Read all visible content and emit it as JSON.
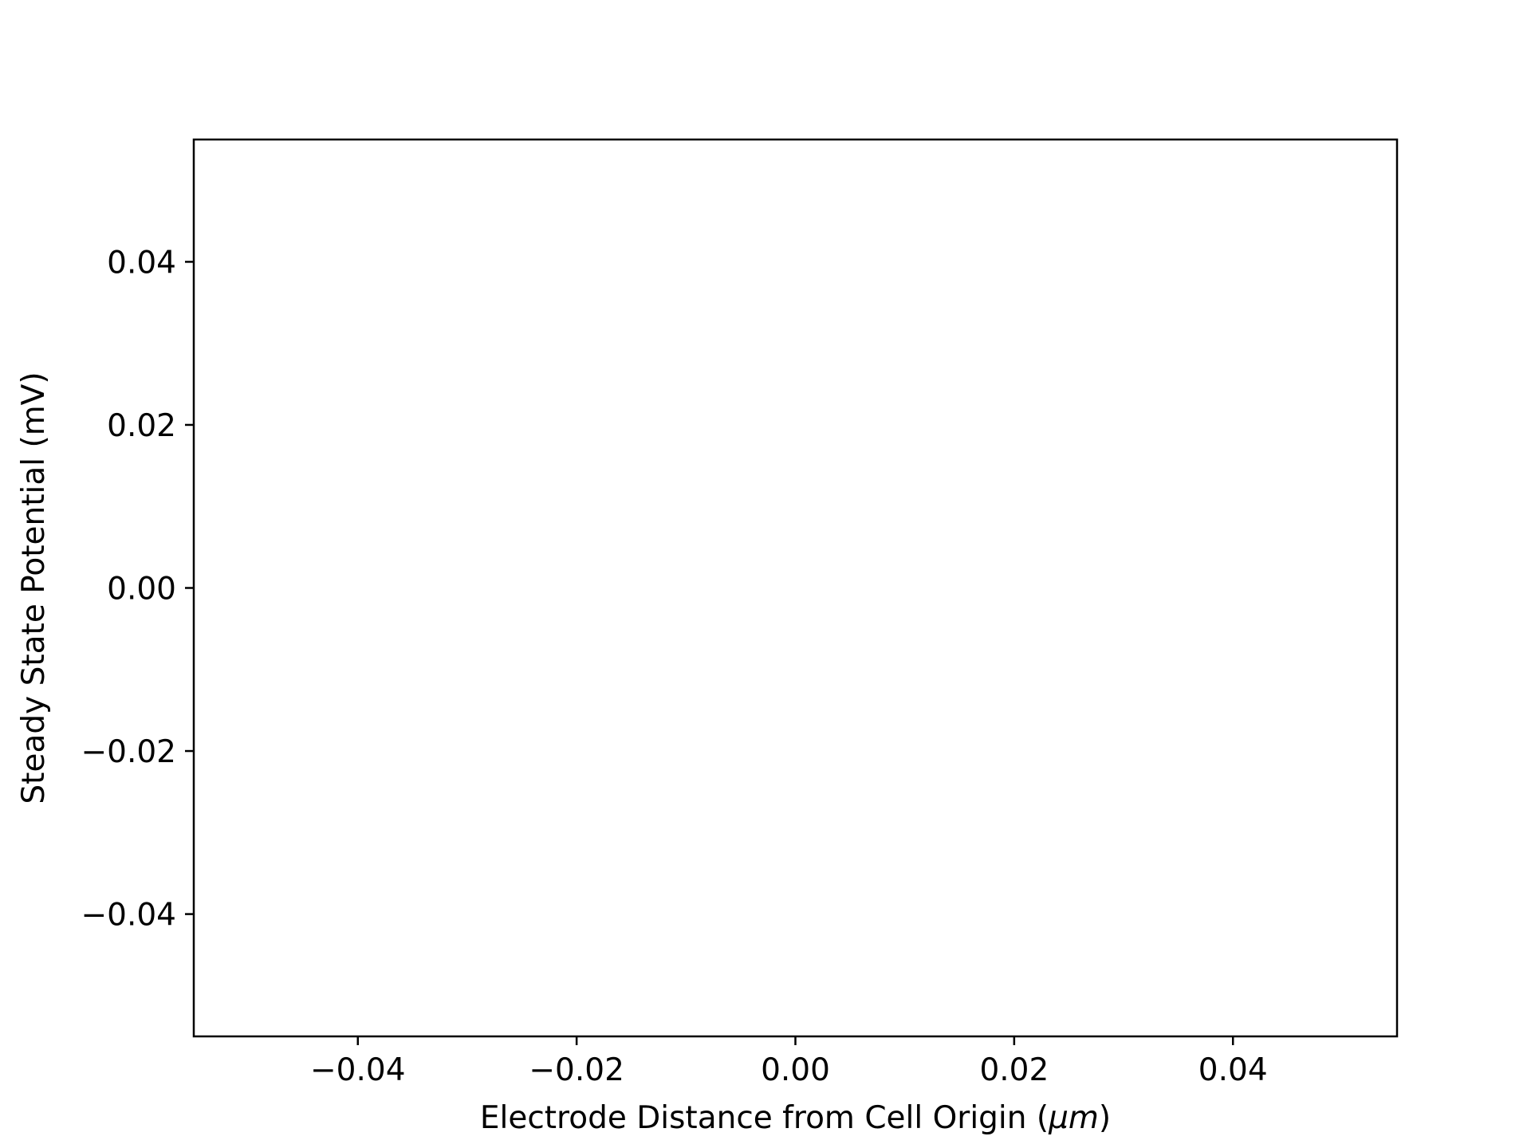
{
  "chart_data": {
    "type": "line",
    "title": "",
    "xlabel": "Electrode Distance from Cell Origin (",
    "xlabel_unit": "μm",
    "xlabel_close": ")",
    "ylabel": "Steady State Potential (mV)",
    "xlim": [
      -0.055,
      0.055
    ],
    "ylim": [
      -0.055,
      0.055
    ],
    "xticks": [
      -0.04,
      -0.02,
      0.0,
      0.02,
      0.04
    ],
    "yticks": [
      -0.04,
      -0.02,
      0.0,
      0.02,
      0.04
    ],
    "xtick_labels": [
      "−0.04",
      "−0.02",
      "0.00",
      "0.02",
      "0.04"
    ],
    "ytick_labels": [
      "−0.04",
      "−0.02",
      "0.00",
      "0.02",
      "0.04"
    ],
    "grid": false,
    "series": []
  }
}
